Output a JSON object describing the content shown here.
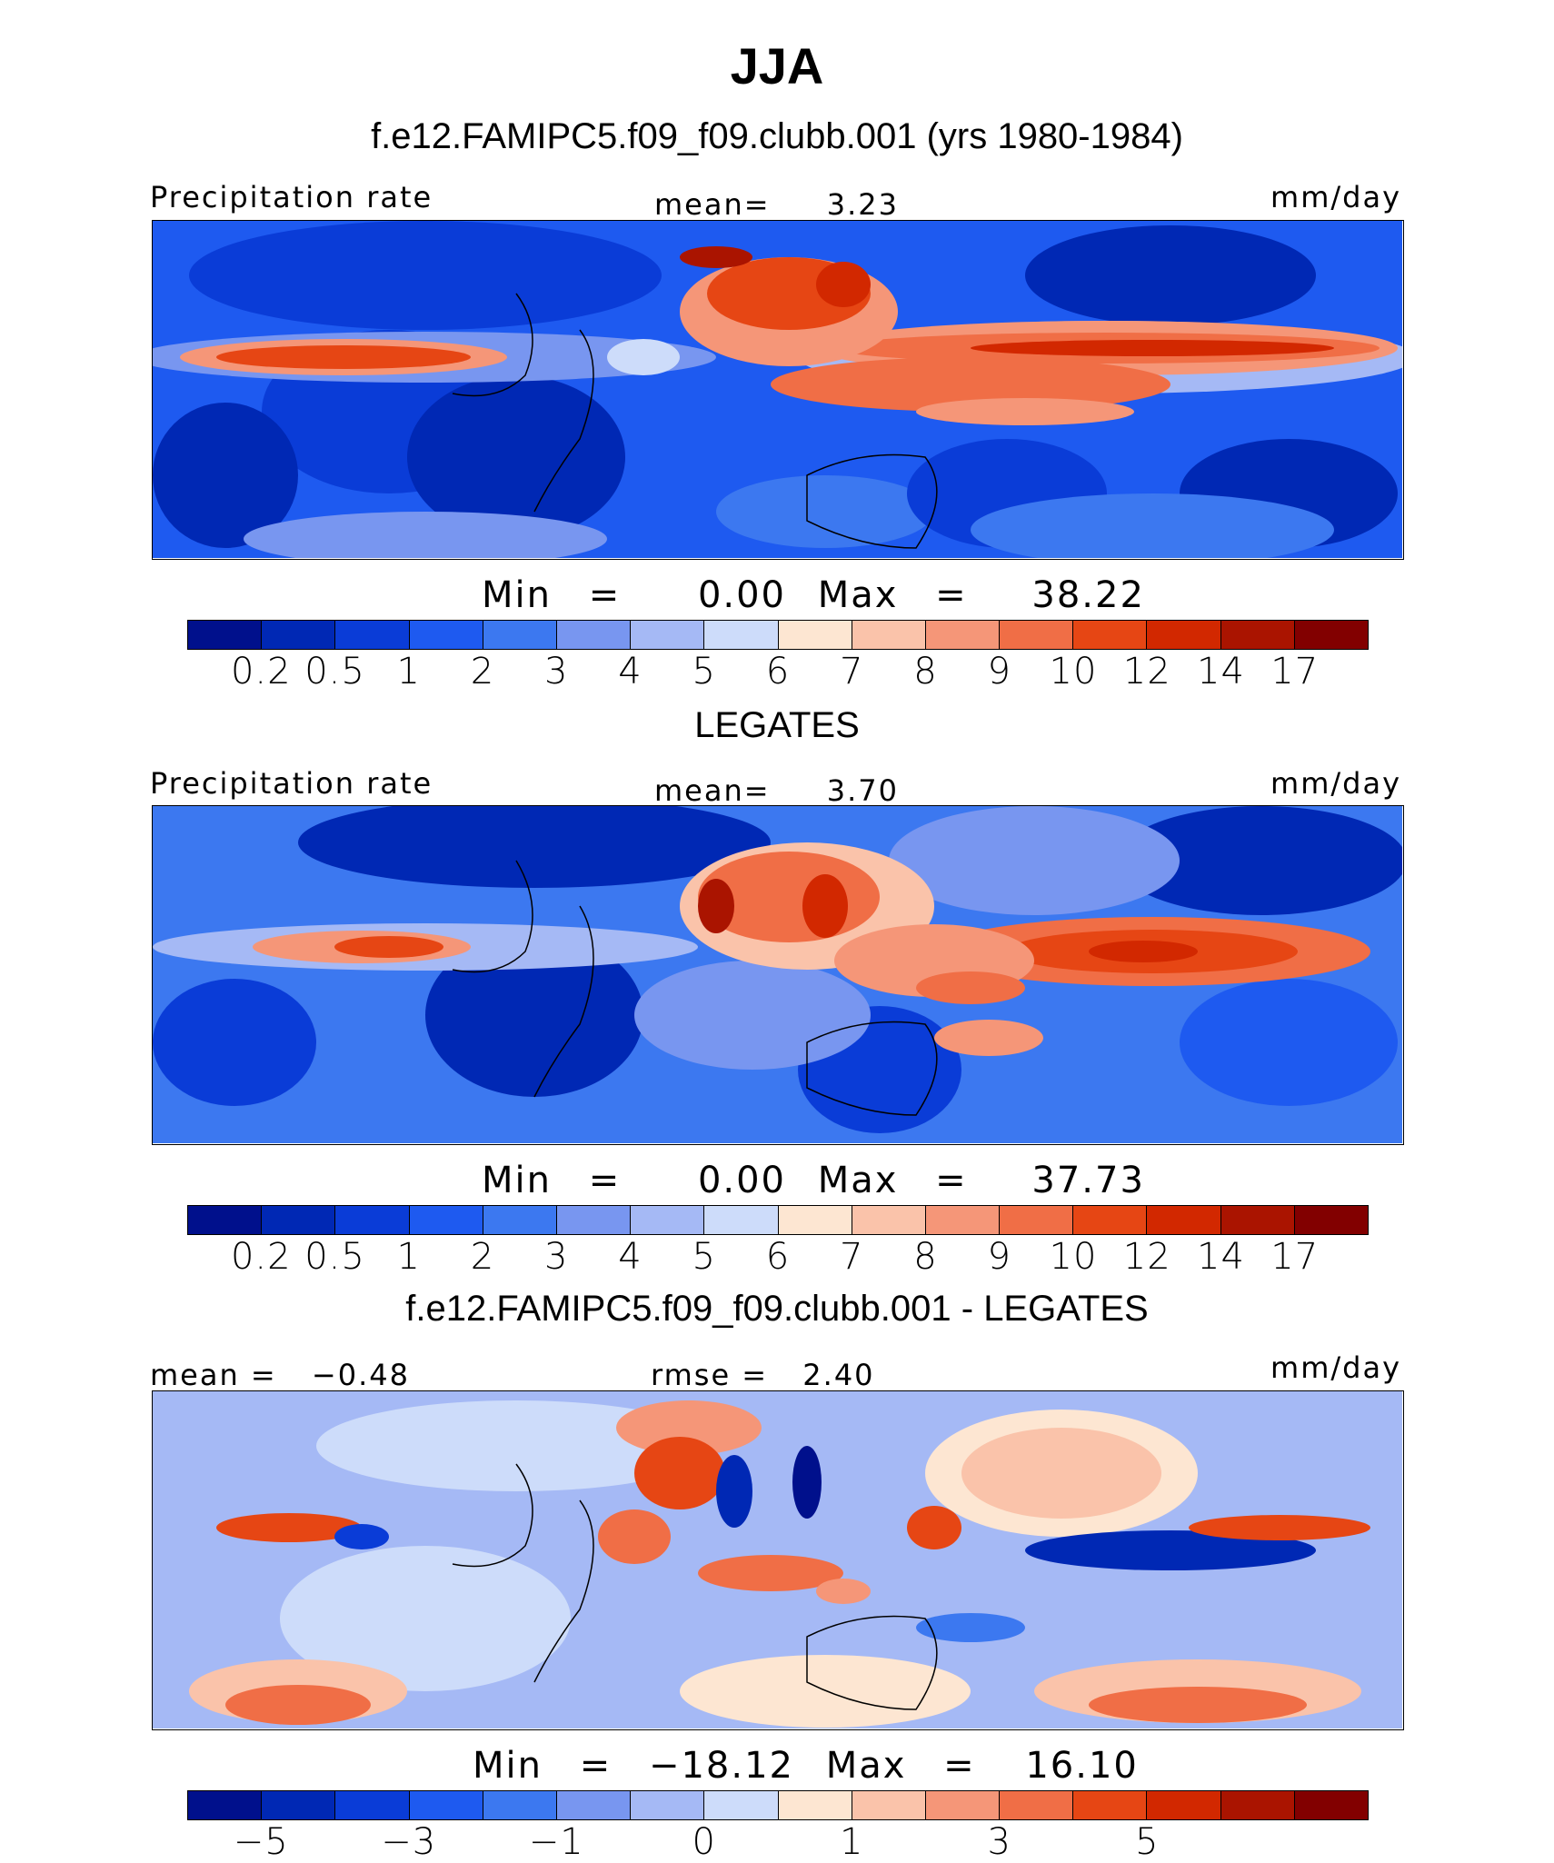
{
  "figure": {
    "title": "JJA",
    "season": "JJA"
  },
  "colors": {
    "precip_scale": [
      "#00108c",
      "#0028b4",
      "#0a3cd7",
      "#1e5af0",
      "#3c78f0",
      "#7896f0",
      "#a5b9f5",
      "#cddcfa",
      "#fde6d2",
      "#fac3aa",
      "#f59678",
      "#f06e46",
      "#e64614",
      "#d22800",
      "#aa1400",
      "#820000"
    ],
    "diff_scale": [
      "#00108c",
      "#0028b4",
      "#0a3cd7",
      "#1e5af0",
      "#3c78f0",
      "#7896f0",
      "#a5b9f5",
      "#cddcfa",
      "#fde6d2",
      "#fac3aa",
      "#f59678",
      "#f06e46",
      "#e64614",
      "#d22800",
      "#aa1400",
      "#820000"
    ]
  },
  "panels": [
    {
      "heading": "f.e12.FAMIPC5.f09_f09.clubb.001 (yrs 1980-1984)",
      "left_label": "Precipitation rate",
      "center_label": "mean=",
      "center_value": "3.23",
      "right_label": "mm/day",
      "min_label": "Min",
      "eq1": "=",
      "min_value": "0.00",
      "max_label": "Max",
      "eq2": "=",
      "max_value": "38.22",
      "colorbar_ticks": [
        "0.2",
        "0.5",
        "1",
        "2",
        "3",
        "4",
        "5",
        "6",
        "7",
        "8",
        "9",
        "10",
        "12",
        "14",
        "17"
      ]
    },
    {
      "heading": "LEGATES",
      "left_label": "Precipitation rate",
      "center_label": "mean=",
      "center_value": "3.70",
      "right_label": "mm/day",
      "min_label": "Min",
      "eq1": "=",
      "min_value": "0.00",
      "max_label": "Max",
      "eq2": "=",
      "max_value": "37.73",
      "colorbar_ticks": [
        "0.2",
        "0.5",
        "1",
        "2",
        "3",
        "4",
        "5",
        "6",
        "7",
        "8",
        "9",
        "10",
        "12",
        "14",
        "17"
      ]
    },
    {
      "heading": "f.e12.FAMIPC5.f09_f09.clubb.001 - LEGATES",
      "left_label": "mean =",
      "left_value": "−0.48",
      "center_label": "rmse =",
      "center_value": "2.40",
      "right_label": "mm/day",
      "min_label": "Min",
      "eq1": "=",
      "min_value": "−18.12",
      "max_label": "Max",
      "eq2": "=",
      "max_value": "16.10",
      "colorbar_ticks": [
        "−5",
        "−3",
        "−1",
        "0",
        "1",
        "3",
        "5"
      ]
    }
  ],
  "chart_data": [
    {
      "type": "heatmap",
      "title": "f.e12.FAMIPC5.f09_f09.clubb.001 (yrs 1980-1984)",
      "variable": "Precipitation rate",
      "units": "mm/day",
      "mean": 3.23,
      "min": 0.0,
      "max": 38.22,
      "contour_levels": [
        0.2,
        0.5,
        1,
        2,
        3,
        4,
        5,
        6,
        7,
        8,
        9,
        10,
        12,
        14,
        17
      ]
    },
    {
      "type": "heatmap",
      "title": "LEGATES",
      "variable": "Precipitation rate",
      "units": "mm/day",
      "mean": 3.7,
      "min": 0.0,
      "max": 37.73,
      "contour_levels": [
        0.2,
        0.5,
        1,
        2,
        3,
        4,
        5,
        6,
        7,
        8,
        9,
        10,
        12,
        14,
        17
      ]
    },
    {
      "type": "heatmap",
      "title": "f.e12.FAMIPC5.f09_f09.clubb.001 - LEGATES",
      "units": "mm/day",
      "mean": -0.48,
      "rmse": 2.4,
      "min": -18.12,
      "max": 16.1,
      "contour_levels": [
        -5,
        -3,
        -1,
        0,
        1,
        3,
        5
      ]
    }
  ]
}
